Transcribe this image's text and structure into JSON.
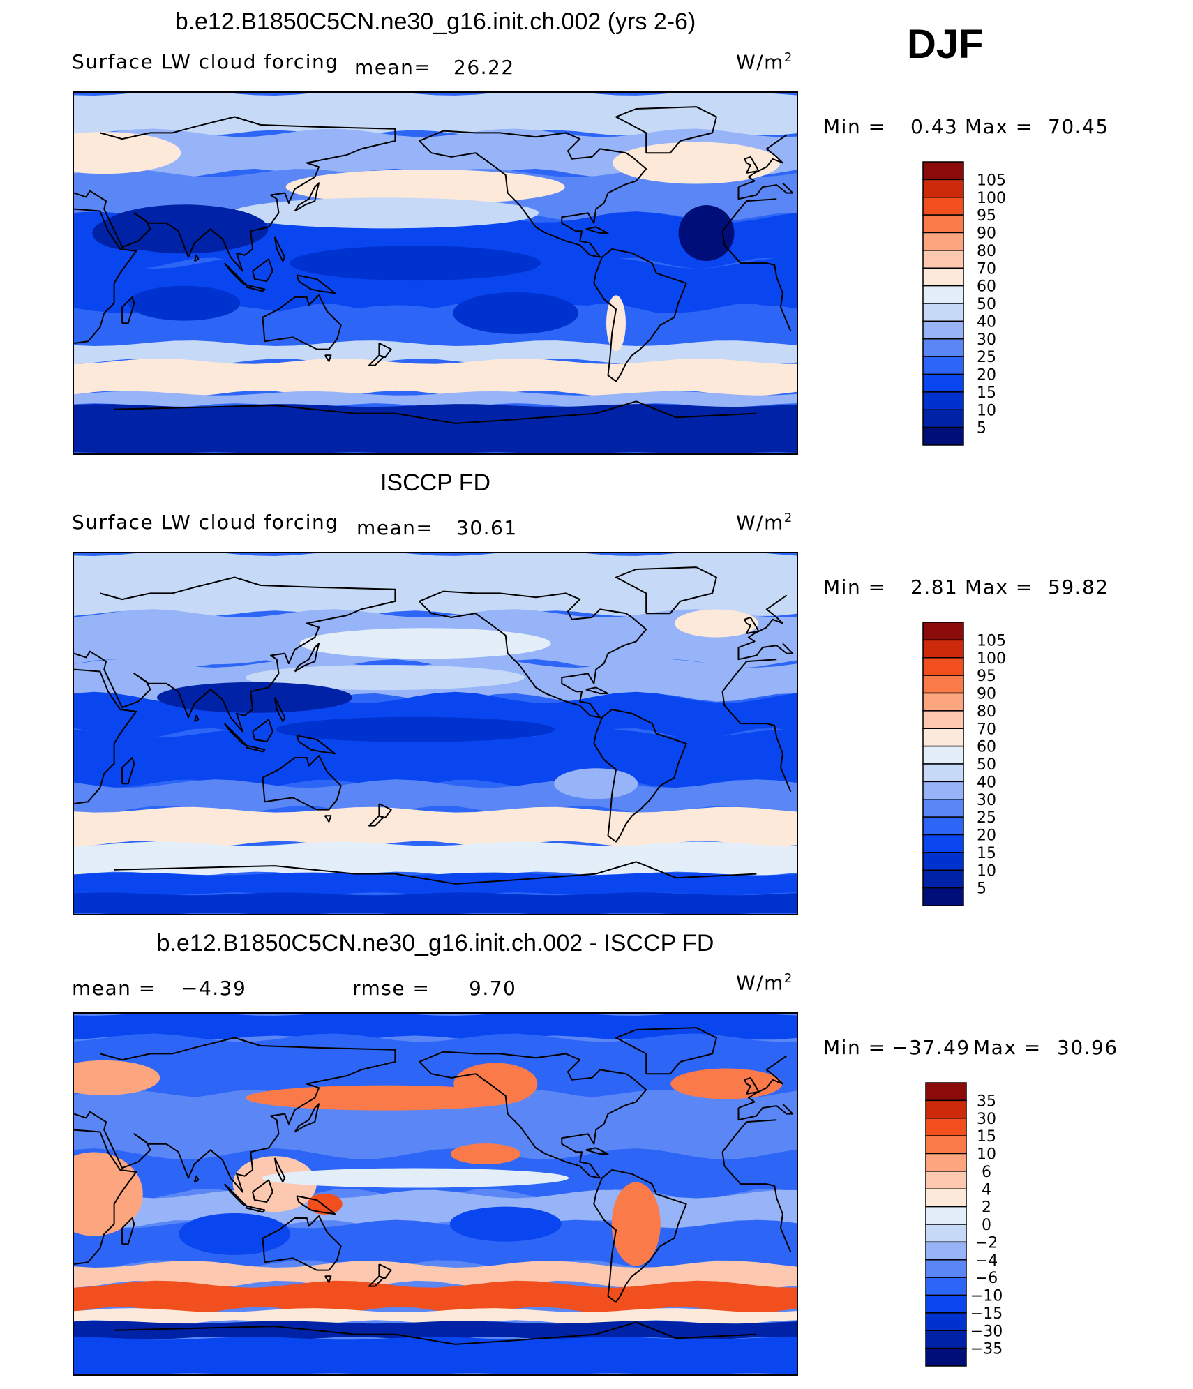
{
  "season": "DJF",
  "panels": [
    {
      "id": "model",
      "title": "b.e12.B1850C5CN.ne30_g16.init.ch.002 (yrs 2-6)",
      "variable": "Surface LW cloud forcing",
      "stat_label": "mean=",
      "stat_value": "26.22",
      "units": "W/m",
      "units_sup": "2",
      "min_label": "Min =",
      "min_value": "0.43",
      "max_label": "Max =",
      "max_value": "70.45",
      "map_type": "field"
    },
    {
      "id": "obs",
      "title": "ISCCP FD",
      "variable": "Surface LW cloud forcing",
      "stat_label": "mean=",
      "stat_value": "30.61",
      "units": "W/m",
      "units_sup": "2",
      "min_label": "Min =",
      "min_value": "2.81",
      "max_label": "Max =",
      "max_value": "59.82",
      "map_type": "field"
    },
    {
      "id": "diff",
      "title": "b.e12.B1850C5CN.ne30_g16.init.ch.002 - ISCCP FD",
      "mean_label": "mean =",
      "mean_value": "−4.39",
      "rmse_label": "rmse =",
      "rmse_value": "9.70",
      "units": "W/m",
      "units_sup": "2",
      "min_label": "Min =",
      "min_value": "−37.49",
      "max_label": "Max =",
      "max_value": "30.96",
      "map_type": "diff"
    }
  ],
  "chart_data": [
    {
      "type": "heatmap",
      "title": "b.e12.B1850C5CN.ne30_g16.init.ch.002 (yrs 2-6)",
      "variable": "Surface LW cloud forcing",
      "units": "W/m2",
      "mean": 26.22,
      "min": 0.43,
      "max": 70.45,
      "colorbar_levels": [
        5,
        10,
        15,
        20,
        25,
        30,
        40,
        50,
        60,
        70,
        80,
        90,
        95,
        100,
        105
      ],
      "colors": [
        "#000e7a",
        "#0022a6",
        "#0032cf",
        "#0a46f0",
        "#2d66f7",
        "#5a87f5",
        "#96b4f7",
        "#c6d9f7",
        "#e3eef9",
        "#fde9d9",
        "#fcc8af",
        "#fca57e",
        "#fb7a4a",
        "#f24f1f",
        "#cc2a0b",
        "#8b0a0a"
      ]
    },
    {
      "type": "heatmap",
      "title": "ISCCP FD",
      "variable": "Surface LW cloud forcing",
      "units": "W/m2",
      "mean": 30.61,
      "min": 2.81,
      "max": 59.82,
      "colorbar_levels": [
        5,
        10,
        15,
        20,
        25,
        30,
        40,
        50,
        60,
        70,
        80,
        90,
        95,
        100,
        105
      ],
      "colors": [
        "#000e7a",
        "#0022a6",
        "#0032cf",
        "#0a46f0",
        "#2d66f7",
        "#5a87f5",
        "#96b4f7",
        "#c6d9f7",
        "#e3eef9",
        "#fde9d9",
        "#fcc8af",
        "#fca57e",
        "#fb7a4a",
        "#f24f1f",
        "#cc2a0b",
        "#8b0a0a"
      ]
    },
    {
      "type": "heatmap",
      "title": "b.e12.B1850C5CN.ne30_g16.init.ch.002 - ISCCP FD",
      "units": "W/m2",
      "mean": -4.39,
      "rmse": 9.7,
      "min": -37.49,
      "max": 30.96,
      "colorbar_levels": [
        -35,
        -30,
        -15,
        -10,
        -6,
        -4,
        -2,
        0,
        2,
        4,
        6,
        10,
        15,
        30,
        35
      ],
      "colorbar_labels": [
        "35",
        "30",
        "15",
        "10",
        "6",
        "4",
        "2",
        "0",
        "−2",
        "−4",
        "−6",
        "−10",
        "−15",
        "−30",
        "−35"
      ],
      "colors": [
        "#000e7a",
        "#0022a6",
        "#0032cf",
        "#0a46f0",
        "#2d66f7",
        "#5a87f5",
        "#96b4f7",
        "#c6d9f7",
        "#e3eef9",
        "#fde9d9",
        "#fcc8af",
        "#fca57e",
        "#fb7a4a",
        "#f24f1f",
        "#cc2a0b",
        "#8b0a0a"
      ]
    }
  ]
}
